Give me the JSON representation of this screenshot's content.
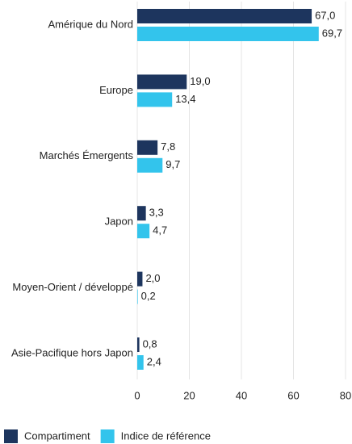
{
  "chart_data": {
    "type": "bar",
    "orientation": "horizontal",
    "categories": [
      "Amérique du Nord",
      "Europe",
      "Marchés Émergents",
      "Japon",
      "Moyen-Orient / développé",
      "Asie-Pacifique hors Japon"
    ],
    "series": [
      {
        "name": "Compartiment",
        "color": "#1d355e",
        "values": [
          67.0,
          19.0,
          7.8,
          3.3,
          2.0,
          0.8
        ],
        "value_labels": [
          "67,0",
          "19,0",
          "7,8",
          "3,3",
          "2,0",
          "0,8"
        ]
      },
      {
        "name": "Indice de référence",
        "color": "#33c4ec",
        "values": [
          69.7,
          13.4,
          9.7,
          4.7,
          0.2,
          2.4
        ],
        "value_labels": [
          "69,7",
          "13,4",
          "9,7",
          "4,7",
          "0,2",
          "2,4"
        ]
      }
    ],
    "xlim": [
      0,
      80
    ],
    "xticks": [
      0,
      20,
      40,
      60,
      80
    ],
    "grid": true,
    "legend": "bottom-left"
  }
}
